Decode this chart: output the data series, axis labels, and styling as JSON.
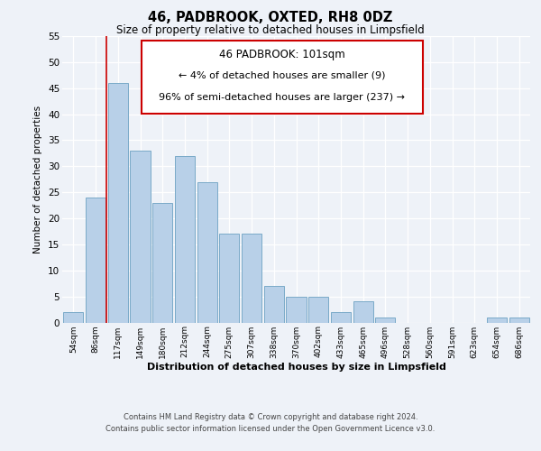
{
  "title": "46, PADBROOK, OXTED, RH8 0DZ",
  "subtitle": "Size of property relative to detached houses in Limpsfield",
  "xlabel": "Distribution of detached houses by size in Limpsfield",
  "ylabel": "Number of detached properties",
  "bin_labels": [
    "54sqm",
    "86sqm",
    "117sqm",
    "149sqm",
    "180sqm",
    "212sqm",
    "244sqm",
    "275sqm",
    "307sqm",
    "338sqm",
    "370sqm",
    "402sqm",
    "433sqm",
    "465sqm",
    "496sqm",
    "528sqm",
    "560sqm",
    "591sqm",
    "623sqm",
    "654sqm",
    "686sqm"
  ],
  "bar_values": [
    2,
    24,
    46,
    33,
    23,
    32,
    27,
    17,
    17,
    7,
    5,
    5,
    2,
    4,
    1,
    0,
    0,
    0,
    0,
    1,
    1
  ],
  "bar_color": "#b8d0e8",
  "bar_edge_color": "#7aaac8",
  "marker_line_color": "#cc0000",
  "annotation_title": "46 PADBROOK: 101sqm",
  "annotation_line1": "← 4% of detached houses are smaller (9)",
  "annotation_line2": "96% of semi-detached houses are larger (237) →",
  "annotation_box_facecolor": "#ffffff",
  "annotation_box_edgecolor": "#cc0000",
  "ylim": [
    0,
    55
  ],
  "yticks": [
    0,
    5,
    10,
    15,
    20,
    25,
    30,
    35,
    40,
    45,
    50,
    55
  ],
  "footer_line1": "Contains HM Land Registry data © Crown copyright and database right 2024.",
  "footer_line2": "Contains public sector information licensed under the Open Government Licence v3.0.",
  "bg_color": "#eef2f8",
  "plot_bg_color": "#eef2f8"
}
